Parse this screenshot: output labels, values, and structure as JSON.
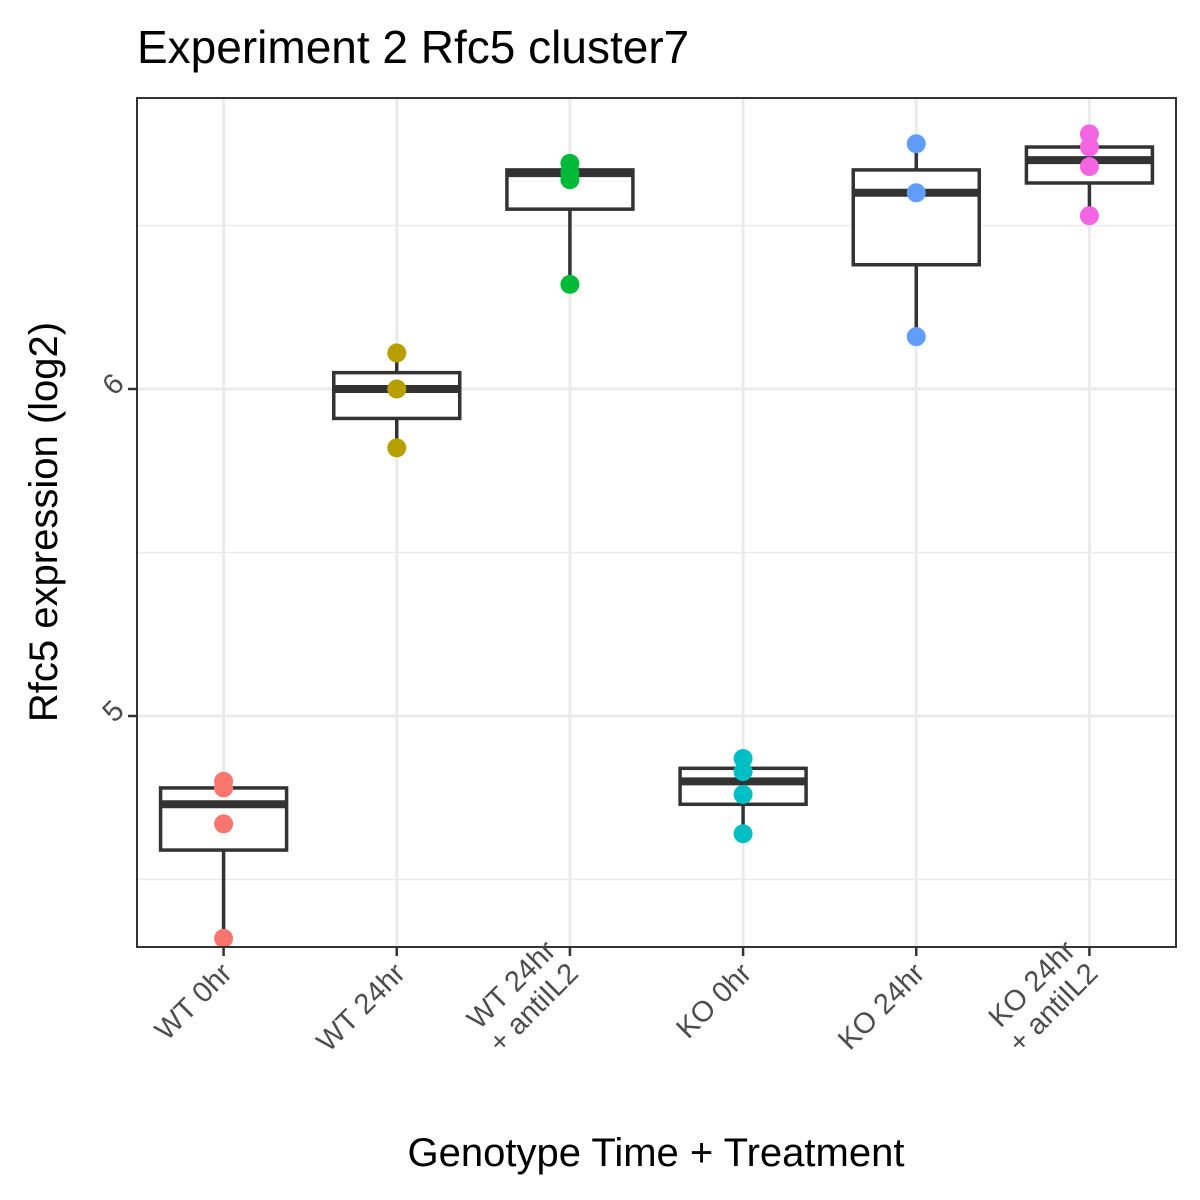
{
  "chart_data": {
    "type": "box",
    "title": "Experiment 2 Rfc5 cluster7",
    "xlabel": "Genotype Time + Treatment",
    "ylabel": "Rfc5 expression (log2)",
    "ylim": [
      4.3,
      6.9
    ],
    "yticks": [
      5,
      6
    ],
    "grid": true,
    "categories": [
      {
        "label": [
          "WT 0hr"
        ],
        "color": "#F8766D",
        "box": {
          "lower": 4.33,
          "q1": 4.59,
          "median": 4.73,
          "q3": 4.78,
          "upper": 4.8
        },
        "points": [
          4.8,
          4.78,
          4.67,
          4.32
        ]
      },
      {
        "label": [
          "WT 24hr"
        ],
        "color": "#B79F00",
        "box": {
          "lower": 5.82,
          "q1": 5.91,
          "median": 6.0,
          "q3": 6.05,
          "upper": 6.11
        },
        "points": [
          6.11,
          6.0,
          5.82
        ]
      },
      {
        "label": [
          "WT 24hr",
          "+ antiIL2"
        ],
        "color": "#00BA38",
        "box": {
          "lower": 6.32,
          "q1": 6.55,
          "median": 6.66,
          "q3": 6.67,
          "upper": 6.69
        },
        "points": [
          6.69,
          6.66,
          6.64,
          6.32
        ]
      },
      {
        "label": [
          "KO 0hr"
        ],
        "color": "#00BFC4",
        "box": {
          "lower": 4.64,
          "q1": 4.73,
          "median": 4.8,
          "q3": 4.84,
          "upper": 4.87
        },
        "points": [
          4.87,
          4.83,
          4.76,
          4.64
        ]
      },
      {
        "label": [
          "KO 24hr"
        ],
        "color": "#619CFF",
        "box": {
          "lower": 6.16,
          "q1": 6.38,
          "median": 6.6,
          "q3": 6.67,
          "upper": 6.75
        },
        "points": [
          6.75,
          6.6,
          6.16
        ]
      },
      {
        "label": [
          "KO 24hr",
          "+ antiIL2"
        ],
        "color": "#F564E3",
        "box": {
          "lower": 6.53,
          "q1": 6.63,
          "median": 6.7,
          "q3": 6.74,
          "upper": 6.78
        },
        "points": [
          6.78,
          6.74,
          6.68,
          6.53
        ]
      }
    ]
  }
}
